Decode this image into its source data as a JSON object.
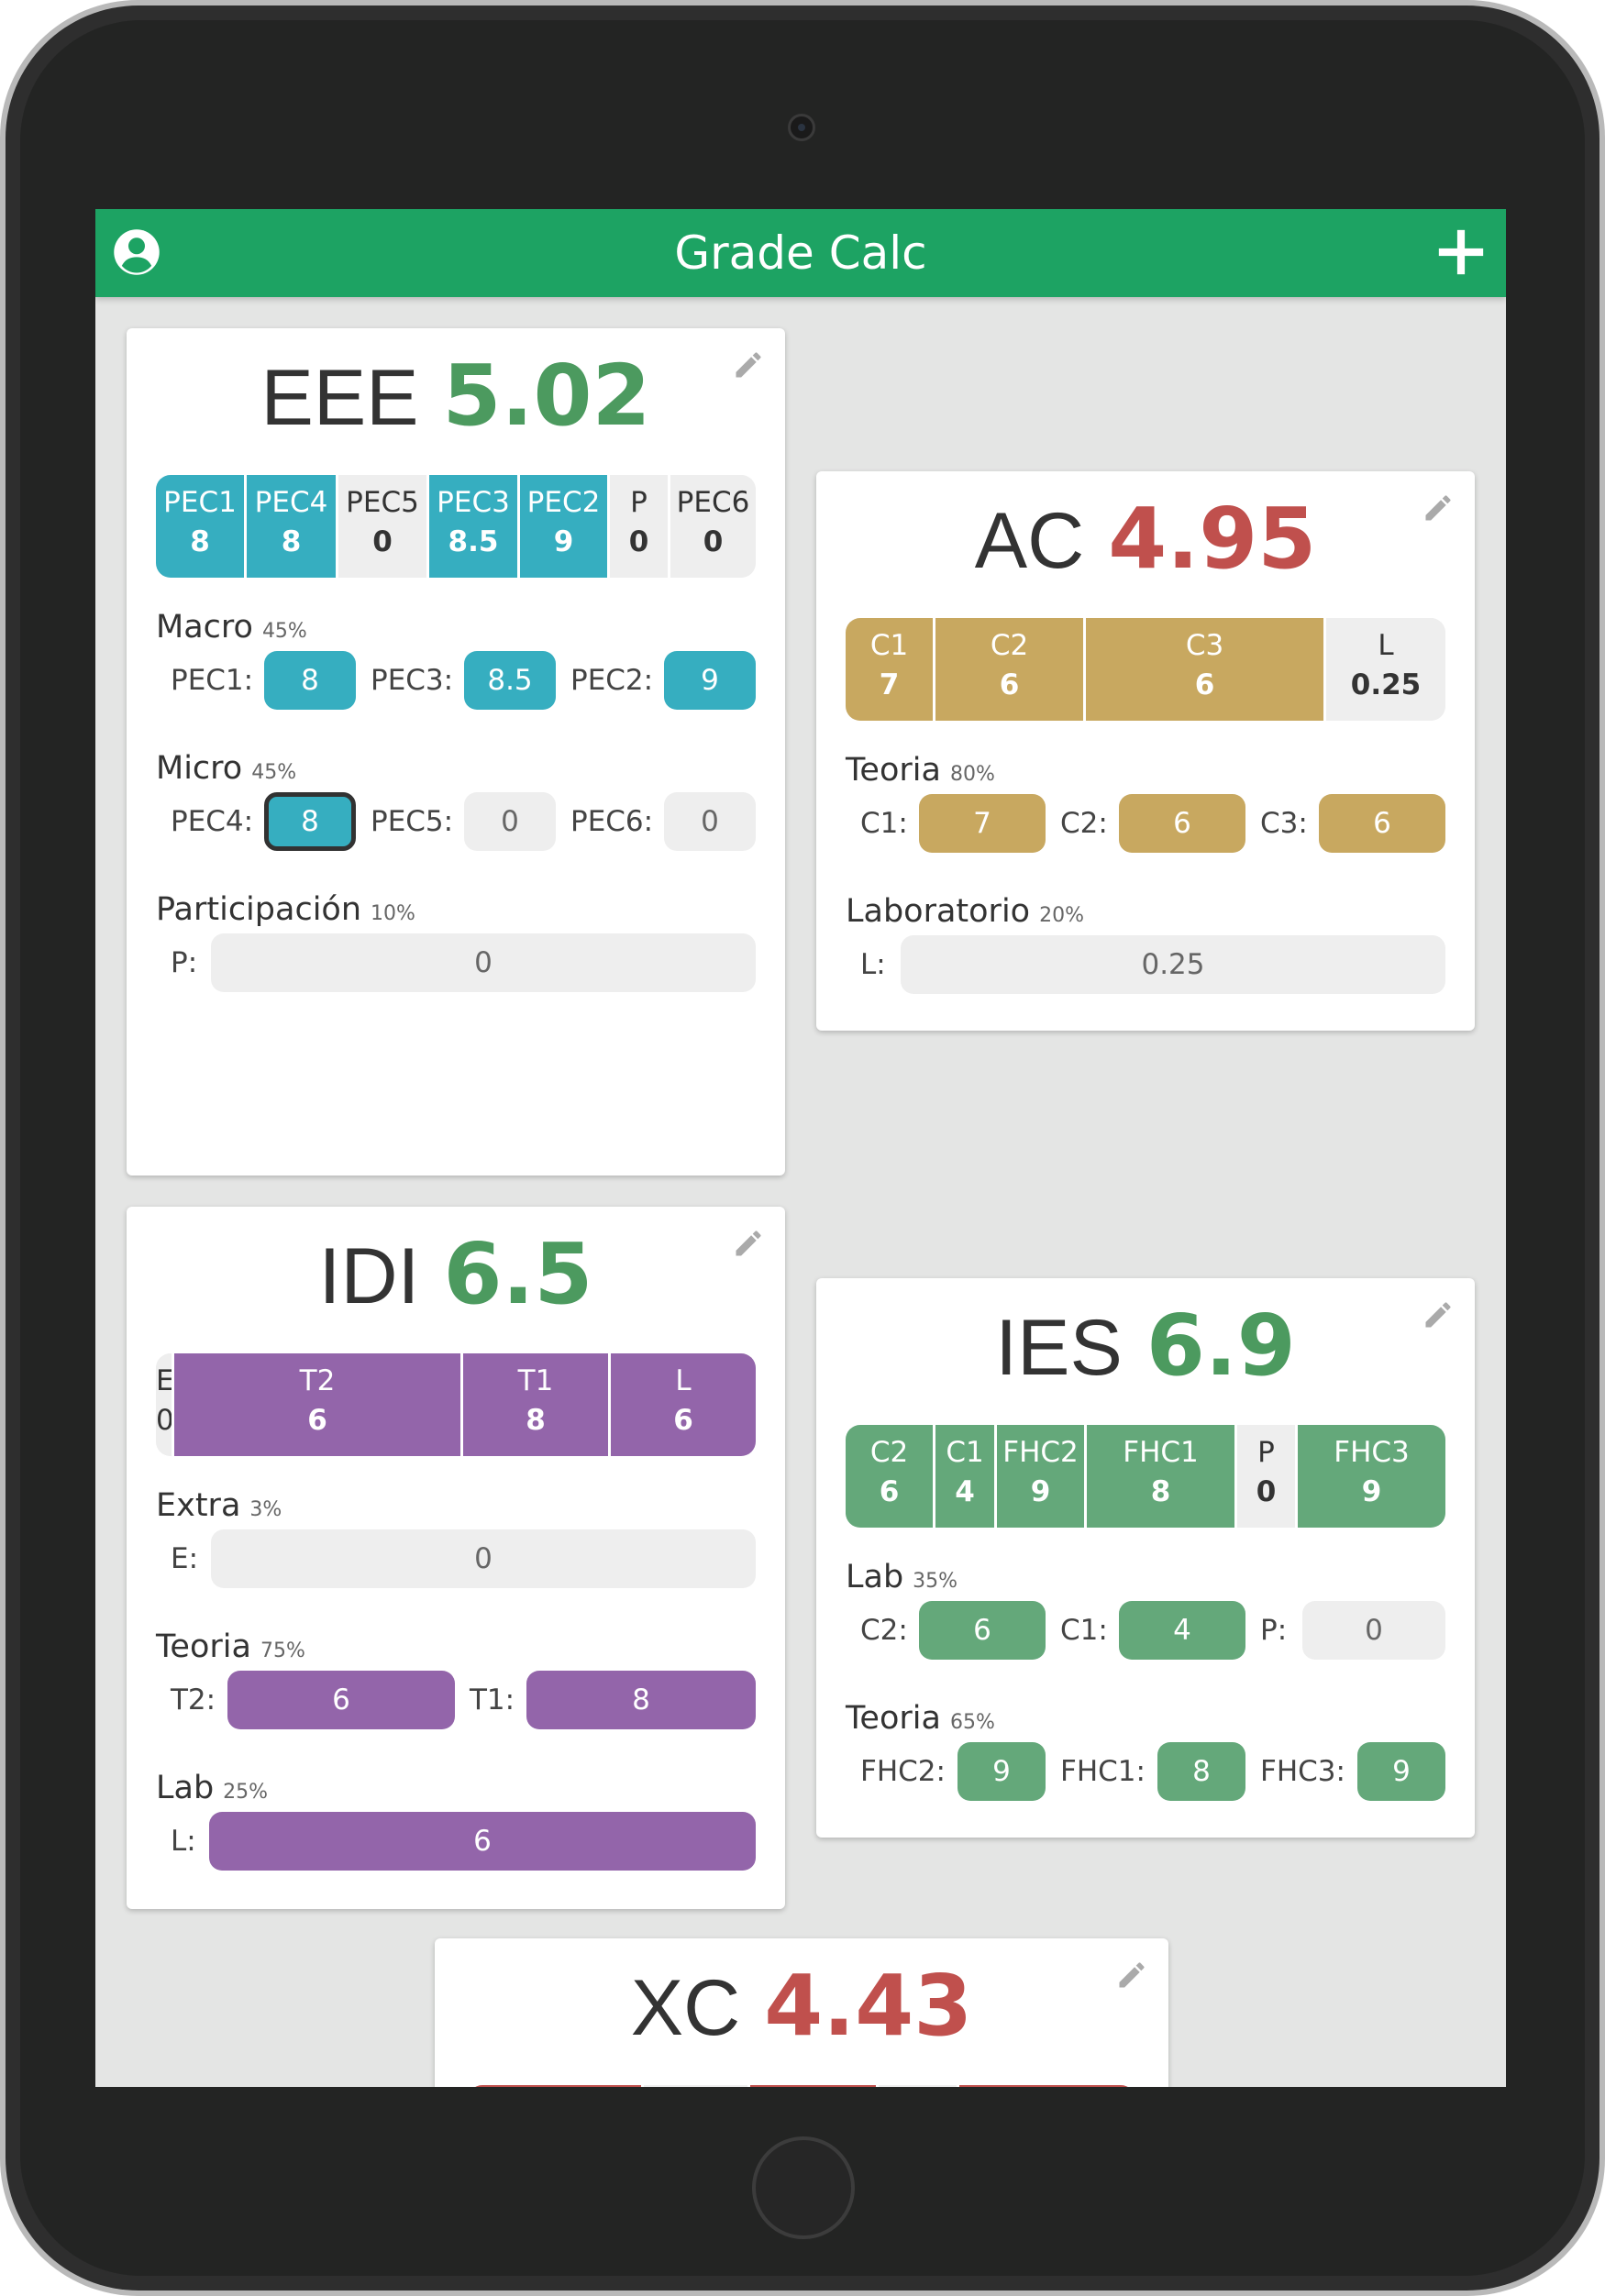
{
  "app": {
    "title": "Grade Calc",
    "user_icon": "user-circle-icon",
    "add_icon": "plus-icon",
    "edit_icon": "pencil-icon"
  },
  "colors": {
    "appbar": "#1da363",
    "pass": "#4c9a5f",
    "fail": "#c0504d",
    "eee": "#36aec0",
    "ac": "#c8a860",
    "idi": "#9365aa",
    "ies": "#64a87a",
    "xc": "#c0504d"
  },
  "cards": {
    "eee": {
      "name": "EEE",
      "grade": "5.02",
      "bar": [
        {
          "label": "PEC1",
          "value": "8"
        },
        {
          "label": "PEC4",
          "value": "8"
        },
        {
          "label": "PEC5",
          "value": "0"
        },
        {
          "label": "PEC3",
          "value": "8.5"
        },
        {
          "label": "PEC2",
          "value": "9"
        },
        {
          "label": "P",
          "value": "0"
        },
        {
          "label": "PEC6",
          "value": "0"
        }
      ],
      "sections": [
        {
          "title": "Macro",
          "pct": "45%",
          "fields": [
            {
              "label": "PEC1:",
              "value": "8"
            },
            {
              "label": "PEC3:",
              "value": "8.5"
            },
            {
              "label": "PEC2:",
              "value": "9"
            }
          ]
        },
        {
          "title": "Micro",
          "pct": "45%",
          "fields": [
            {
              "label": "PEC4:",
              "value": "8"
            },
            {
              "label": "PEC5:",
              "value": "0"
            },
            {
              "label": "PEC6:",
              "value": "0"
            }
          ]
        },
        {
          "title": "Participación",
          "pct": "10%",
          "fields": [
            {
              "label": "P:",
              "value": "0"
            }
          ]
        }
      ]
    },
    "ac": {
      "name": "AC",
      "grade": "4.95",
      "bar": [
        {
          "label": "C1",
          "value": "7"
        },
        {
          "label": "C2",
          "value": "6"
        },
        {
          "label": "C3",
          "value": "6"
        },
        {
          "label": "L",
          "value": "0.25"
        }
      ],
      "sections": [
        {
          "title": "Teoria",
          "pct": "80%",
          "fields": [
            {
              "label": "C1:",
              "value": "7"
            },
            {
              "label": "C2:",
              "value": "6"
            },
            {
              "label": "C3:",
              "value": "6"
            }
          ]
        },
        {
          "title": "Laboratorio",
          "pct": "20%",
          "fields": [
            {
              "label": "L:",
              "value": "0.25"
            }
          ]
        }
      ]
    },
    "idi": {
      "name": "IDI",
      "grade": "6.5",
      "bar": [
        {
          "label": "E",
          "value": "0"
        },
        {
          "label": "T2",
          "value": "6"
        },
        {
          "label": "T1",
          "value": "8"
        },
        {
          "label": "L",
          "value": "6"
        }
      ],
      "sections": [
        {
          "title": "Extra",
          "pct": "3%",
          "fields": [
            {
              "label": "E:",
              "value": "0"
            }
          ]
        },
        {
          "title": "Teoria",
          "pct": "75%",
          "fields": [
            {
              "label": "T2:",
              "value": "6"
            },
            {
              "label": "T1:",
              "value": "8"
            }
          ]
        },
        {
          "title": "Lab",
          "pct": "25%",
          "fields": [
            {
              "label": "L:",
              "value": "6"
            }
          ]
        }
      ]
    },
    "ies": {
      "name": "IES",
      "grade": "6.9",
      "bar": [
        {
          "label": "C2",
          "value": "6"
        },
        {
          "label": "C1",
          "value": "4"
        },
        {
          "label": "FHC2",
          "value": "9"
        },
        {
          "label": "FHC1",
          "value": "8"
        },
        {
          "label": "P",
          "value": "0"
        },
        {
          "label": "FHC3",
          "value": "9"
        }
      ],
      "sections": [
        {
          "title": "Lab",
          "pct": "35%",
          "fields": [
            {
              "label": "C2:",
              "value": "6"
            },
            {
              "label": "C1:",
              "value": "4"
            },
            {
              "label": "P:",
              "value": "0"
            }
          ]
        },
        {
          "title": "Teoria",
          "pct": "65%",
          "fields": [
            {
              "label": "FHC2:",
              "value": "9"
            },
            {
              "label": "FHC1:",
              "value": "8"
            },
            {
              "label": "FHC3:",
              "value": "9"
            }
          ]
        }
      ]
    },
    "xc": {
      "name": "XC",
      "grade": "4.43"
    }
  }
}
